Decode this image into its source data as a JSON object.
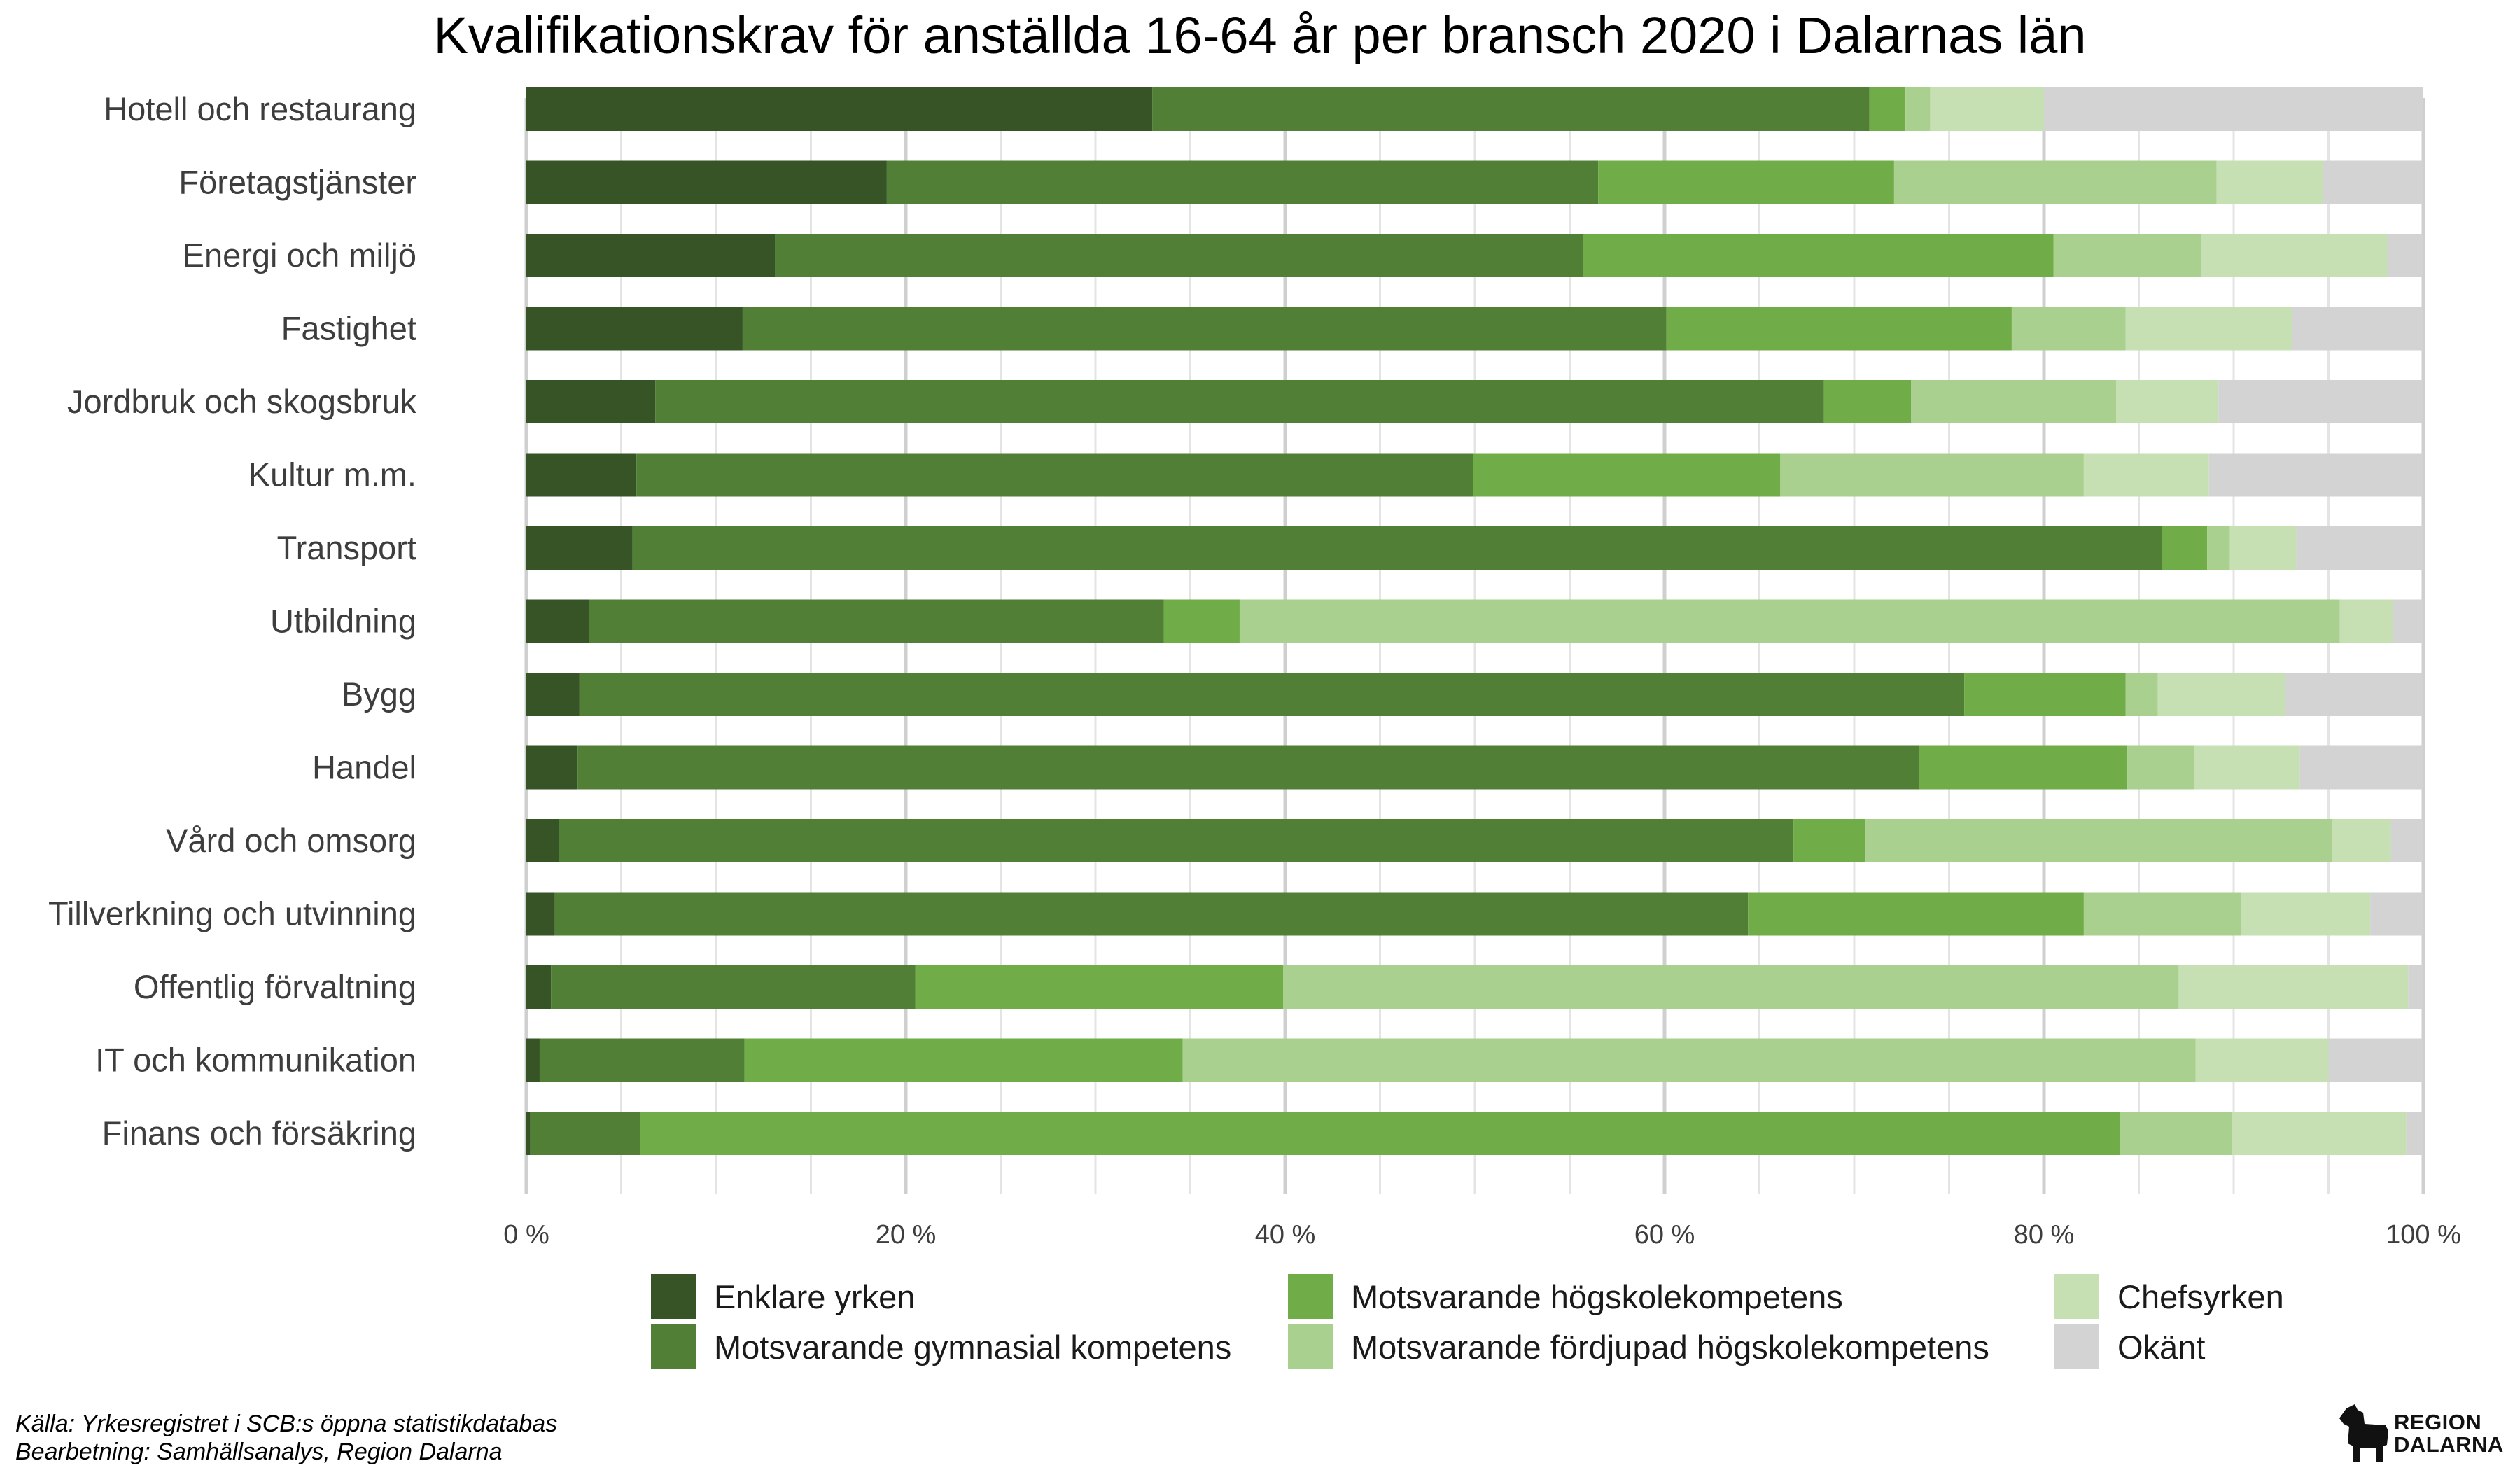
{
  "chart_data": {
    "type": "bar",
    "orientation": "horizontal",
    "stacked": true,
    "title": "Kvalifikationskrav för anställda 16-64 år per bransch 2020 i Dalarnas län",
    "xlim": [
      0,
      100
    ],
    "x_ticks": [
      "0 %",
      "20 %",
      "40 %",
      "60 %",
      "80 %",
      "100 %"
    ],
    "grid": true,
    "legend_position": "bottom",
    "categories": [
      "Hotell och restaurang",
      "Företagstjänster",
      "Energi och miljö",
      "Fastighet",
      "Jordbruk och skogsbruk",
      "Kultur m.m.",
      "Transport",
      "Utbildning",
      "Bygg",
      "Handel",
      "Vård och omsorg",
      "Tillverkning och utvinning",
      "Offentlig förvaltning",
      "IT och kommunikation",
      "Finans och försäkring"
    ],
    "series": [
      {
        "name": "Enklare yrken",
        "color": "#365426",
        "values": [
          33.0,
          19.0,
          13.1,
          11.4,
          6.8,
          5.8,
          5.6,
          3.3,
          2.8,
          2.7,
          1.7,
          1.5,
          1.3,
          0.7,
          0.2
        ]
      },
      {
        "name": "Motsvarande gymnasial kompetens",
        "color": "#507f35",
        "values": [
          37.8,
          37.5,
          42.6,
          48.7,
          61.6,
          44.1,
          80.6,
          30.3,
          73.0,
          70.7,
          65.1,
          62.9,
          19.2,
          10.8,
          5.8
        ]
      },
      {
        "name": "Motsvarande högskolekompetens",
        "color": "#70ac47",
        "values": [
          1.9,
          15.6,
          24.8,
          18.2,
          4.6,
          16.2,
          2.4,
          4.0,
          8.5,
          11.0,
          3.8,
          17.7,
          19.4,
          23.1,
          78.0
        ]
      },
      {
        "name": "Motsvarande fördjupad högskolekompetens",
        "color": "#a9d08e",
        "values": [
          1.3,
          17.0,
          7.8,
          6.0,
          10.8,
          16.0,
          1.2,
          58.0,
          1.7,
          3.5,
          24.6,
          8.3,
          47.2,
          53.4,
          5.9
        ]
      },
      {
        "name": "Chefsyrken",
        "color": "#c6e0b4",
        "values": [
          6.0,
          5.6,
          9.8,
          8.8,
          5.4,
          6.6,
          3.5,
          2.8,
          6.7,
          5.6,
          3.1,
          6.8,
          12.1,
          7.0,
          9.2
        ]
      },
      {
        "name": "Okänt",
        "color": "#d3d3d3",
        "values": [
          20.0,
          5.3,
          1.9,
          6.9,
          10.8,
          11.3,
          6.7,
          1.6,
          7.3,
          6.5,
          1.7,
          2.8,
          0.8,
          5.0,
          0.9
        ]
      }
    ]
  },
  "source": {
    "line1": "Källa: Yrkesregistret i SCB:s öppna statistikdatabas",
    "line2": "Bearbetning: Samhällsanalys, Region Dalarna"
  },
  "logo": {
    "line1": "REGION",
    "line2": "DALARNA",
    "icon": "dala-horse-icon"
  }
}
